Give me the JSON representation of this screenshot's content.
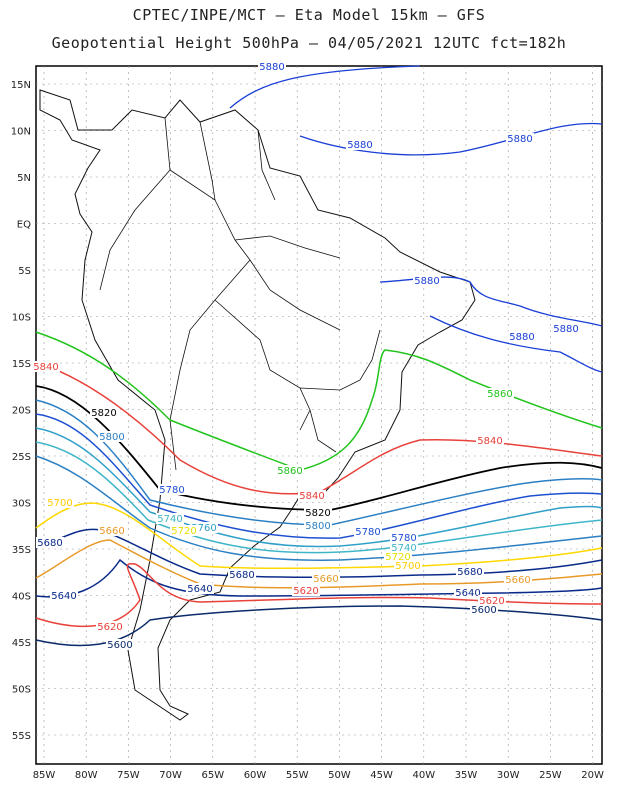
{
  "header": {
    "line1": "CPTEC/INPE/MCT –  Eta Model 15km – GFS",
    "line2": "Geopotential Height 500hPa – 04/05/2021 12UTC fct=182h"
  },
  "map": {
    "lat_labels": [
      "15N",
      "10N",
      "5N",
      "EQ",
      "5S",
      "10S",
      "15S",
      "20S",
      "25S",
      "30S",
      "35S",
      "40S",
      "45S",
      "50S",
      "55S"
    ],
    "lon_labels": [
      "85W",
      "80W",
      "75W",
      "70W",
      "65W",
      "60W",
      "55W",
      "50W",
      "45W",
      "40W",
      "35W",
      "30W",
      "25W",
      "20W"
    ],
    "contours": [
      {
        "level": "5880",
        "color": "#1a3fd6"
      },
      {
        "level": "5860",
        "color": "#22c41c"
      },
      {
        "level": "5840",
        "color": "#e8413a"
      },
      {
        "level": "5820",
        "color": "#000000"
      },
      {
        "level": "5800",
        "color": "#2a7fc4"
      },
      {
        "level": "5780",
        "color": "#1d4fd0"
      },
      {
        "level": "5760",
        "color": "#30a0c8"
      },
      {
        "level": "5740",
        "color": "#3fb6c8"
      },
      {
        "level": "5720",
        "color": "#e8e000"
      },
      {
        "level": "5700",
        "color": "#ffcc00"
      },
      {
        "level": "5680",
        "color": "#0a2a8a"
      },
      {
        "level": "5660",
        "color": "#e89a28"
      },
      {
        "level": "5640",
        "color": "#0a2a8a"
      },
      {
        "level": "5620",
        "color": "#e8413a"
      },
      {
        "level": "5600",
        "color": "#0a2a6a"
      }
    ]
  }
}
